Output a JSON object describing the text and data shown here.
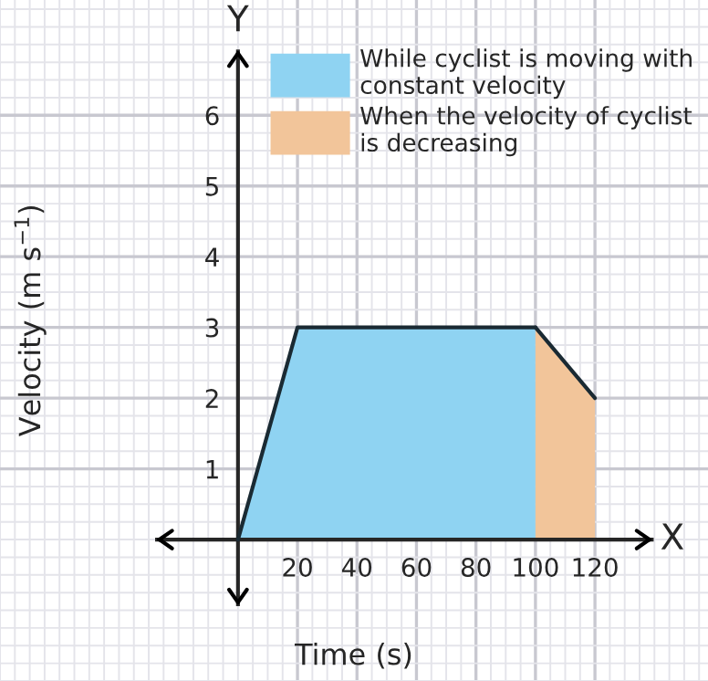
{
  "chart_data": {
    "type": "area",
    "xlabel": "Time (s)",
    "ylabel": "Velocity (m s$^{−1}$)",
    "series": [
      {
        "name": "While cyclist is moving with constant velocity",
        "color": "#8fd3f2",
        "x": [
          0,
          20,
          100
        ],
        "values": [
          0,
          3,
          3
        ]
      },
      {
        "name": "When the velocity of cyclist is decreasing",
        "color": "#f2c59a",
        "x": [
          100,
          120
        ],
        "values": [
          3,
          2
        ]
      }
    ],
    "xlim": [
      -31,
      158
    ],
    "ylim": [
      -1.46,
      7.63
    ],
    "xticks": [
      20,
      40,
      60,
      80,
      100,
      120
    ],
    "yticks": [
      1,
      2,
      3,
      4,
      5,
      6
    ],
    "grid": true,
    "legend": "top right",
    "annotations": [
      "X",
      "Y"
    ]
  }
}
